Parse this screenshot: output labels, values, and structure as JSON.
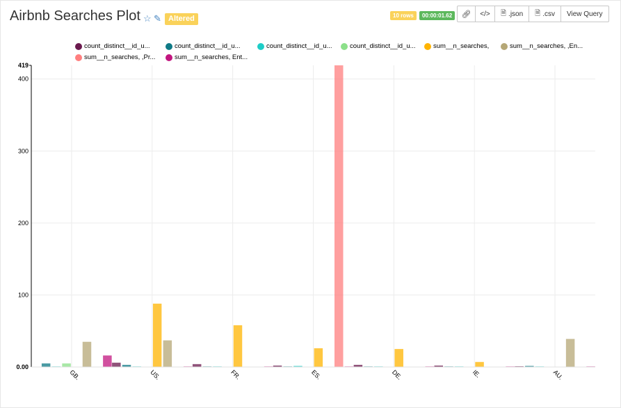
{
  "header": {
    "title": "Airbnb Searches Plot",
    "altered_label": "Altered",
    "rows_label": "10 rows",
    "time_label": "00:00:01.62",
    "json_label": ".json",
    "csv_label": ".csv",
    "view_query_label": "View Query",
    "colors": {
      "rows": "#fad25a",
      "time": "#5cb85c"
    }
  },
  "chart_data": {
    "type": "bar",
    "categories": [
      "GB.",
      "US.",
      "FR.",
      "ES.",
      "DE.",
      "IE.",
      "AU."
    ],
    "y_ticks": [
      "0.00",
      "100",
      "200",
      "300",
      "400"
    ],
    "y_max_label": "419",
    "ylim": [
      0,
      419
    ],
    "grid": true,
    "legend_position": "top",
    "series": [
      {
        "name": "count_distinct__id_u...",
        "color": "#6b1a4e",
        "values": [
          0,
          6,
          4,
          2,
          3,
          2,
          1
        ]
      },
      {
        "name": "count_distinct__id_u...",
        "color": "#0f7a86",
        "values": [
          5,
          3,
          0.5,
          0.5,
          0.5,
          0.5,
          1.5
        ]
      },
      {
        "name": "count_distinct__id_u...",
        "color": "#1ecdc7",
        "values": [
          0.5,
          0.5,
          0.5,
          1.5,
          0.5,
          0.5,
          0.5
        ]
      },
      {
        "name": "count_distinct__id_u...",
        "color": "#8ce08a",
        "values": [
          5,
          0,
          0,
          0,
          0,
          0,
          0
        ]
      },
      {
        "name": "sum__n_searches,",
        "color": "#ffb400",
        "values": [
          0,
          88,
          58,
          26,
          25,
          7,
          0
        ]
      },
      {
        "name": "sum__n_searches, ,En...",
        "color": "#b5a776",
        "values": [
          35,
          37,
          0,
          0,
          0,
          0,
          39
        ]
      },
      {
        "name": "sum__n_searches, ,Pr...",
        "color": "#ff7f7f",
        "values": [
          0,
          0,
          0,
          419,
          0,
          0,
          0
        ]
      },
      {
        "name": "sum__n_searches, Ent...",
        "color": "#c2157f",
        "values": [
          16,
          0.5,
          0.5,
          0.5,
          0.5,
          0.5,
          0.5
        ]
      }
    ]
  }
}
